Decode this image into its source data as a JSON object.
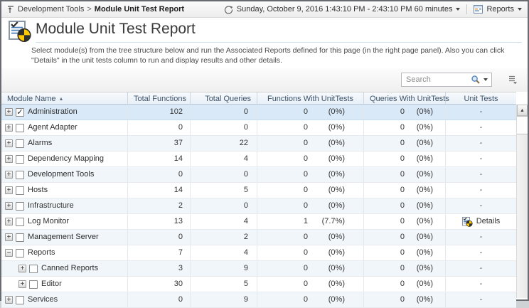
{
  "topbar": {
    "breadcrumb": {
      "parent": "Development Tools",
      "separator": ">",
      "current": "Module Unit Test Report"
    },
    "time_range_label": "Sunday, October 9, 2016 1:43:10 PM - 2:43:10 PM 60 minutes",
    "reports_label": "Reports"
  },
  "page": {
    "title": "Module Unit Test Report",
    "description": "Select module(s) from the tree structure below and run the Associated Reports defined for this page (in the right page panel). Also you can click \"Details\" in the unit tests column to run and display results and other details."
  },
  "search": {
    "placeholder": "Search"
  },
  "icons": {
    "sort_asc": "▲",
    "check": "✓",
    "expand": "+",
    "collapse": "−",
    "scroll_up": "▲"
  },
  "colors": {
    "selected_row": "#d9e9f8",
    "stripe_row": "#f1f6fa",
    "header_text": "#3c5269",
    "pie_yellow": "#ffc800",
    "pie_black": "#2e2e2e"
  },
  "table": {
    "columns": [
      {
        "label": "Module Name",
        "sorted": "asc"
      },
      {
        "label": "Total Functions"
      },
      {
        "label": "Total Queries"
      },
      {
        "label": "Functions With UnitTests"
      },
      {
        "label": "Queries With UnitTests"
      },
      {
        "label": "Unit Tests"
      }
    ],
    "rows": [
      {
        "name": "Administration",
        "level": 0,
        "expanded": false,
        "checked": true,
        "selected": true,
        "total_functions": "102",
        "total_queries": "0",
        "fwu_num": "0",
        "fwu_pct": "(0%)",
        "qwu_num": "0",
        "qwu_pct": "(0%)",
        "unit_tests": "-",
        "details": false
      },
      {
        "name": "Agent Adapter",
        "level": 0,
        "expanded": false,
        "checked": false,
        "selected": false,
        "total_functions": "0",
        "total_queries": "0",
        "fwu_num": "0",
        "fwu_pct": "(0%)",
        "qwu_num": "0",
        "qwu_pct": "(0%)",
        "unit_tests": "-",
        "details": false
      },
      {
        "name": "Alarms",
        "level": 0,
        "expanded": false,
        "checked": false,
        "selected": false,
        "total_functions": "37",
        "total_queries": "22",
        "fwu_num": "0",
        "fwu_pct": "(0%)",
        "qwu_num": "0",
        "qwu_pct": "(0%)",
        "unit_tests": "-",
        "details": false
      },
      {
        "name": "Dependency Mapping",
        "level": 0,
        "expanded": false,
        "checked": false,
        "selected": false,
        "total_functions": "14",
        "total_queries": "4",
        "fwu_num": "0",
        "fwu_pct": "(0%)",
        "qwu_num": "0",
        "qwu_pct": "(0%)",
        "unit_tests": "-",
        "details": false
      },
      {
        "name": "Development Tools",
        "level": 0,
        "expanded": false,
        "checked": false,
        "selected": false,
        "total_functions": "0",
        "total_queries": "0",
        "fwu_num": "0",
        "fwu_pct": "(0%)",
        "qwu_num": "0",
        "qwu_pct": "(0%)",
        "unit_tests": "-",
        "details": false
      },
      {
        "name": "Hosts",
        "level": 0,
        "expanded": false,
        "checked": false,
        "selected": false,
        "total_functions": "14",
        "total_queries": "5",
        "fwu_num": "0",
        "fwu_pct": "(0%)",
        "qwu_num": "0",
        "qwu_pct": "(0%)",
        "unit_tests": "-",
        "details": false
      },
      {
        "name": "Infrastructure",
        "level": 0,
        "expanded": false,
        "checked": false,
        "selected": false,
        "total_functions": "2",
        "total_queries": "0",
        "fwu_num": "0",
        "fwu_pct": "(0%)",
        "qwu_num": "0",
        "qwu_pct": "(0%)",
        "unit_tests": "-",
        "details": false
      },
      {
        "name": "Log Monitor",
        "level": 0,
        "expanded": false,
        "checked": false,
        "selected": false,
        "total_functions": "13",
        "total_queries": "4",
        "fwu_num": "1",
        "fwu_pct": "(7.7%)",
        "qwu_num": "0",
        "qwu_pct": "(0%)",
        "unit_tests": "Details",
        "details": true
      },
      {
        "name": "Management Server",
        "level": 0,
        "expanded": false,
        "checked": false,
        "selected": false,
        "total_functions": "0",
        "total_queries": "2",
        "fwu_num": "0",
        "fwu_pct": "(0%)",
        "qwu_num": "0",
        "qwu_pct": "(0%)",
        "unit_tests": "-",
        "details": false
      },
      {
        "name": "Reports",
        "level": 0,
        "expanded": true,
        "checked": false,
        "selected": false,
        "total_functions": "7",
        "total_queries": "4",
        "fwu_num": "0",
        "fwu_pct": "(0%)",
        "qwu_num": "0",
        "qwu_pct": "(0%)",
        "unit_tests": "-",
        "details": false
      },
      {
        "name": "Canned Reports",
        "level": 1,
        "expanded": false,
        "checked": false,
        "selected": false,
        "total_functions": "3",
        "total_queries": "9",
        "fwu_num": "0",
        "fwu_pct": "(0%)",
        "qwu_num": "0",
        "qwu_pct": "(0%)",
        "unit_tests": "-",
        "details": false
      },
      {
        "name": "Editor",
        "level": 1,
        "expanded": false,
        "checked": false,
        "selected": false,
        "total_functions": "30",
        "total_queries": "5",
        "fwu_num": "0",
        "fwu_pct": "(0%)",
        "qwu_num": "0",
        "qwu_pct": "(0%)",
        "unit_tests": "-",
        "details": false
      },
      {
        "name": "Services",
        "level": 0,
        "expanded": false,
        "checked": false,
        "selected": false,
        "total_functions": "0",
        "total_queries": "9",
        "fwu_num": "0",
        "fwu_pct": "(0%)",
        "qwu_num": "0",
        "qwu_pct": "(0%)",
        "unit_tests": "-",
        "details": false
      }
    ]
  }
}
